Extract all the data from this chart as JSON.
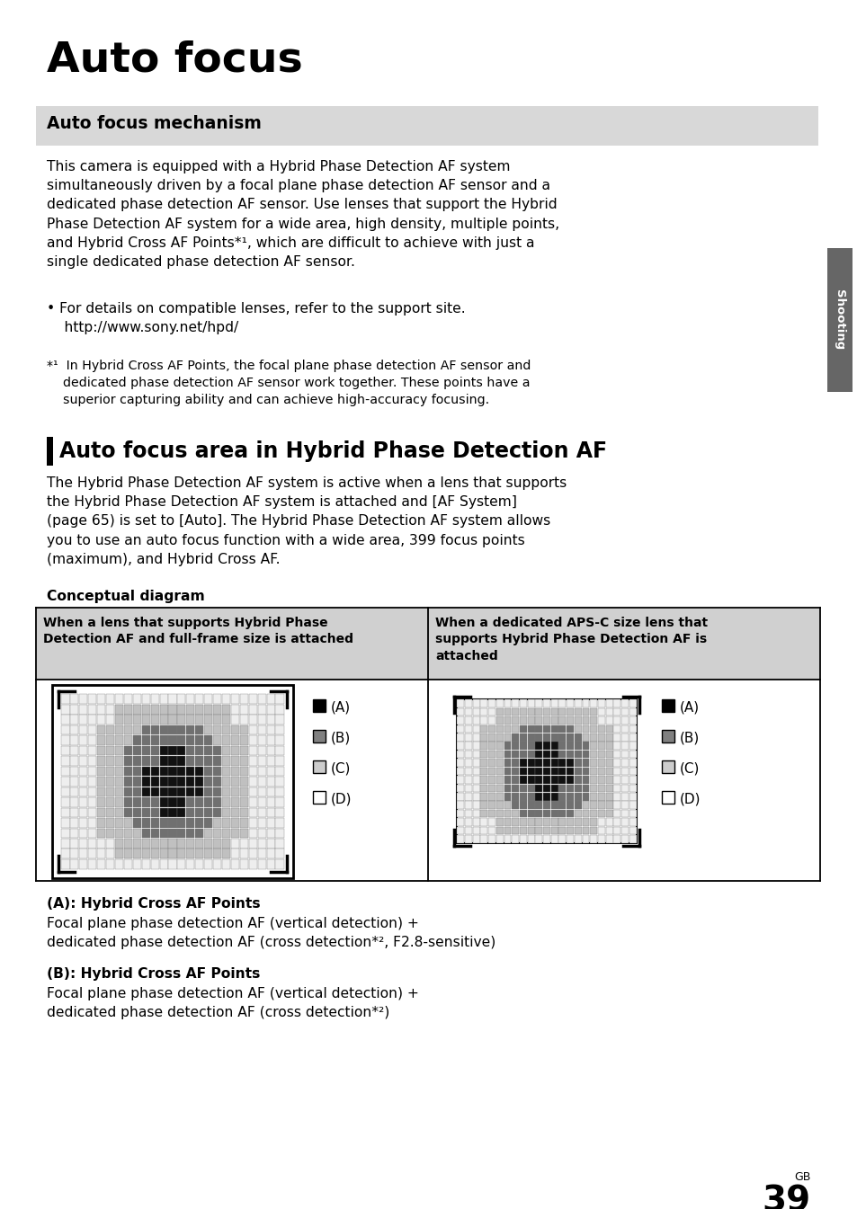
{
  "title": "Auto focus",
  "section1_title": "Auto focus mechanism",
  "section1_body": "This camera is equipped with a Hybrid Phase Detection AF system\nsimultaneously driven by a focal plane phase detection AF sensor and a\ndedicated phase detection AF sensor. Use lenses that support the Hybrid\nPhase Detection AF system for a wide area, high density, multiple points,\nand Hybrid Cross AF Points*¹, which are difficult to achieve with just a\nsingle dedicated phase detection AF sensor.",
  "bullet1": "• For details on compatible lenses, refer to the support site.\n    http://www.sony.net/hpd/",
  "footnote1": "*¹  In Hybrid Cross AF Points, the focal plane phase detection AF sensor and\n    dedicated phase detection AF sensor work together. These points have a\n    superior capturing ability and can achieve high-accuracy focusing.",
  "section2_title": "Auto focus area in Hybrid Phase Detection AF",
  "section2_body": "The Hybrid Phase Detection AF system is active when a lens that supports\nthe Hybrid Phase Detection AF system is attached and [AF System]\n(page 65) is set to [Auto]. The Hybrid Phase Detection AF system allows\nyou to use an auto focus function with a wide area, 399 focus points\n(maximum), and Hybrid Cross AF.",
  "diagram_label": "Conceptual diagram",
  "table_header_left": "When a lens that supports Hybrid Phase\nDetection AF and full-frame size is attached",
  "table_header_right": "When a dedicated APS-C size lens that\nsupports Hybrid Phase Detection AF is\nattached",
  "legend_A": "(A)",
  "legend_B": "(B)",
  "legend_C": "(C)",
  "legend_D": "(D)",
  "color_A": "#000000",
  "color_B": "#808080",
  "color_C": "#cccccc",
  "color_D": "#ffffff",
  "caption_A_bold": "(A): Hybrid Cross AF Points",
  "caption_A_text": "Focal plane phase detection AF (vertical detection) +\ndedicated phase detection AF (cross detection*², F2.8-sensitive)",
  "caption_B_bold": "(B): Hybrid Cross AF Points",
  "caption_B_text": "Focal plane phase detection AF (vertical detection) +\ndedicated phase detection AF (cross detection*²)",
  "page_num": "39",
  "page_label": "GB",
  "sidebar_text": "Shooting",
  "bg_color": "#ffffff",
  "section1_bg": "#d8d8d8",
  "table_header_bg": "#d0d0d0",
  "table_border": "#000000",
  "sidebar_color": "#666666"
}
